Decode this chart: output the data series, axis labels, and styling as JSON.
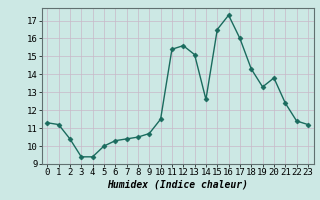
{
  "x": [
    0,
    1,
    2,
    3,
    4,
    5,
    6,
    7,
    8,
    9,
    10,
    11,
    12,
    13,
    14,
    15,
    16,
    17,
    18,
    19,
    20,
    21,
    22,
    23
  ],
  "y": [
    11.3,
    11.2,
    10.4,
    9.4,
    9.4,
    10.0,
    10.3,
    10.4,
    10.5,
    10.7,
    11.5,
    15.4,
    15.6,
    15.1,
    12.6,
    16.5,
    17.3,
    16.0,
    14.3,
    13.3,
    13.8,
    12.4,
    11.4,
    11.2
  ],
  "line_color": "#1a6b5e",
  "marker": "D",
  "marker_size": 2.5,
  "line_width": 1.0,
  "xlabel": "Humidex (Indice chaleur)",
  "xlim": [
    -0.5,
    23.5
  ],
  "ylim": [
    9,
    17.7
  ],
  "yticks": [
    9,
    10,
    11,
    12,
    13,
    14,
    15,
    16,
    17
  ],
  "xticks": [
    0,
    1,
    2,
    3,
    4,
    5,
    6,
    7,
    8,
    9,
    10,
    11,
    12,
    13,
    14,
    15,
    16,
    17,
    18,
    19,
    20,
    21,
    22,
    23
  ],
  "bg_color": "#cce8e4",
  "grid_color": "#c8b8c8",
  "xlabel_fontsize": 7,
  "tick_fontsize": 6.5
}
